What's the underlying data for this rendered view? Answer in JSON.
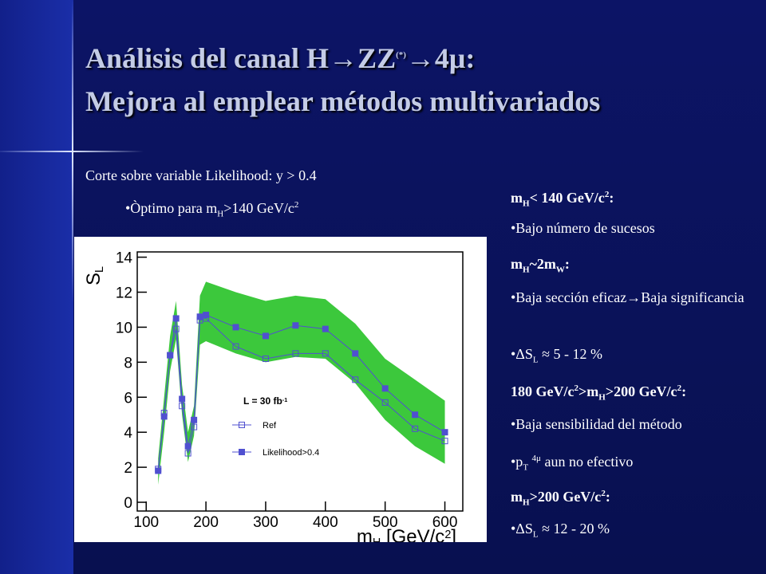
{
  "slide": {
    "title_lines": [
      [
        "Análisis del canal H→ZZ",
        {
          "sup": "(*)"
        },
        "→4μ:"
      ],
      [
        "Mejora al emplear métodos multivariados"
      ]
    ],
    "left_text": [
      [
        "Corte sobre variable Likelihood: y > 0.4"
      ],
      [
        "•Òptimo para m",
        {
          "sub": "H"
        },
        ">140 GeV/c",
        {
          "sup": "2"
        }
      ]
    ],
    "right_text": [
      [
        "m",
        {
          "sub": "H"
        },
        "< 140 GeV/c",
        {
          "sup": "2"
        },
        ":"
      ],
      [
        "•Bajo número de sucesos"
      ],
      [
        "m",
        {
          "sub": "H"
        },
        "~2m",
        {
          "sub": "W"
        },
        ":"
      ],
      [
        "•Baja sección eficaz→Baja significancia"
      ],
      [
        "•ΔS",
        {
          "sub": "L"
        },
        " ≈ 5 - 12 %"
      ],
      [
        "180 GeV/c",
        {
          "sup": "2"
        },
        ">m",
        {
          "sub": "H"
        },
        ">200 GeV/c",
        {
          "sup": "2"
        },
        ":"
      ],
      [
        "•Baja sensibilidad del método"
      ],
      [
        "•p",
        {
          "sub": "T"
        },
        " ",
        {
          "sup": "4μ"
        },
        " aun no efectivo"
      ],
      [
        "m",
        {
          "sub": "H"
        },
        ">200 GeV/c",
        {
          "sup": "2"
        },
        ":"
      ],
      [
        "•ΔS",
        {
          "sub": "L"
        },
        " ≈ 12 - 20 %"
      ]
    ]
  },
  "chart_data": {
    "type": "line",
    "y_label": [
      "S",
      {
        "sub": "L"
      }
    ],
    "x_label": [
      "m",
      {
        "sub": "H"
      },
      " [GeV/c",
      {
        "sup": "2"
      },
      "]"
    ],
    "legend_title": [
      "L = 30 fb",
      {
        "sup": "-1"
      }
    ],
    "x": [
      120,
      130,
      140,
      150,
      160,
      170,
      180,
      190,
      200,
      250,
      300,
      350,
      400,
      450,
      500,
      550,
      600
    ],
    "band": {
      "color": "#3cc83c",
      "upper": [
        2.5,
        6.0,
        9.5,
        11.5,
        6.7,
        4.0,
        5.5,
        11.8,
        12.6,
        12.0,
        11.5,
        11.8,
        11.6,
        10.2,
        8.2,
        7.0,
        5.8
      ],
      "lower": [
        1.0,
        4.0,
        7.5,
        9.3,
        5.0,
        2.3,
        3.8,
        9.0,
        9.2,
        8.5,
        8.0,
        8.3,
        8.2,
        6.8,
        4.7,
        3.2,
        2.2
      ]
    },
    "series": [
      {
        "name": "Ref",
        "color": "#5050d0",
        "marker": "open",
        "values": [
          1.9,
          5.1,
          8.4,
          9.9,
          5.5,
          2.8,
          4.3,
          10.4,
          10.5,
          8.9,
          8.2,
          8.5,
          8.5,
          7.0,
          5.7,
          4.2,
          3.5
        ]
      },
      {
        "name": "Likelihood>0.4",
        "color": "#5050d0",
        "marker": "filled",
        "values": [
          1.8,
          4.9,
          8.4,
          10.5,
          5.9,
          3.2,
          4.7,
          10.6,
          10.7,
          10.0,
          9.5,
          10.1,
          9.9,
          8.5,
          6.5,
          5.0,
          4.0
        ]
      }
    ],
    "xlim": [
      85,
      630
    ],
    "ylim": [
      -0.5,
      14.3
    ],
    "xticks": [
      100,
      200,
      300,
      400,
      500,
      600
    ],
    "yticks": [
      0,
      2,
      4,
      6,
      8,
      10,
      12,
      14
    ]
  }
}
